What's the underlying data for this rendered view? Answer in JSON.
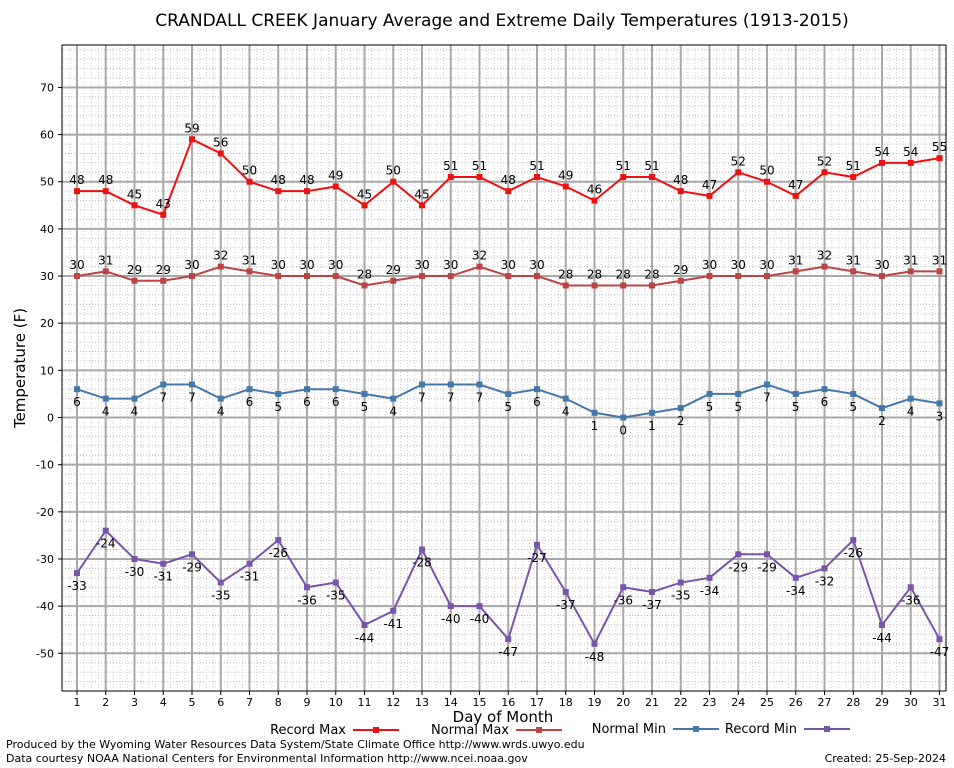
{
  "chart_data": {
    "type": "line",
    "title": "CRANDALL CREEK January Average and Extreme Daily Temperatures (1913-2015)",
    "xlabel": "Day of Month",
    "ylabel": "Temperature (F)",
    "x": [
      1,
      2,
      3,
      4,
      5,
      6,
      7,
      8,
      9,
      10,
      11,
      12,
      13,
      14,
      15,
      16,
      17,
      18,
      19,
      20,
      21,
      22,
      23,
      24,
      25,
      26,
      27,
      28,
      29,
      30,
      31
    ],
    "ylim": [
      -58,
      79
    ],
    "yticks": [
      -50,
      -40,
      -30,
      -20,
      -10,
      0,
      10,
      20,
      30,
      40,
      50,
      60,
      70
    ],
    "grid": true,
    "legend_position": "bottom",
    "series": [
      {
        "name": "Record Max",
        "color": "#ee1111",
        "values": [
          48,
          48,
          45,
          43,
          59,
          56,
          50,
          48,
          48,
          49,
          45,
          50,
          45,
          51,
          51,
          48,
          51,
          49,
          46,
          51,
          51,
          48,
          47,
          52,
          50,
          47,
          52,
          51,
          54,
          54,
          55
        ]
      },
      {
        "name": "Normal Max",
        "color": "#bb4444",
        "values": [
          30,
          31,
          29,
          29,
          30,
          32,
          31,
          30,
          30,
          30,
          28,
          29,
          30,
          30,
          32,
          30,
          30,
          28,
          28,
          28,
          28,
          29,
          30,
          30,
          30,
          31,
          32,
          31,
          30,
          31,
          31
        ]
      },
      {
        "name": "Normal Min",
        "color": "#4477aa",
        "values": [
          6,
          4,
          4,
          7,
          7,
          4,
          6,
          5,
          6,
          6,
          5,
          4,
          7,
          7,
          7,
          5,
          6,
          4,
          1,
          0,
          1,
          2,
          5,
          5,
          7,
          5,
          6,
          5,
          2,
          4,
          3
        ]
      },
      {
        "name": "Record Min",
        "color": "#7755aa",
        "values": [
          -33,
          -24,
          -30,
          -31,
          -29,
          -35,
          -31,
          -26,
          -36,
          -35,
          -44,
          -41,
          -28,
          -40,
          -40,
          -47,
          -27,
          -37,
          -48,
          -36,
          -37,
          -35,
          -34,
          -29,
          -29,
          -34,
          -32,
          -26,
          -44,
          -36,
          -47
        ]
      }
    ]
  },
  "footer": {
    "line1": "Produced by the Wyoming Water Resources Data System/State Climate Office http://www.wrds.uwyo.edu",
    "line2": "Data courtesy NOAA National Centers for Environmental Information http://www.ncei.noaa.gov",
    "created": "Created: 25-Sep-2024"
  }
}
